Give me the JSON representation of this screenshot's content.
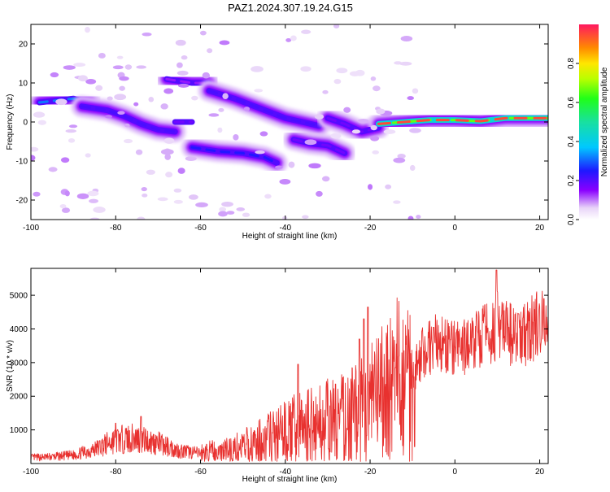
{
  "chart_data": [
    {
      "type": "heatmap",
      "title": "PAZ1.2024.307.19.24.G15",
      "xlabel": "Height of straight line (km)",
      "ylabel": "Frequency (Hz)",
      "xlim": [
        -100,
        22
      ],
      "ylim": [
        -25,
        25
      ],
      "x_ticks": [
        "-100",
        "-80",
        "-60",
        "-40",
        "-20",
        "0",
        "20"
      ],
      "y_ticks": [
        "-20",
        "-10",
        "0",
        "10",
        "20"
      ],
      "colorbar": {
        "label": "Normalized spectral amplitude",
        "range": [
          0,
          1
        ],
        "ticks": [
          "0.0",
          "0.2",
          "0.4",
          "0.6",
          "0.8"
        ]
      },
      "tracks": [
        {
          "x": [
            -98,
            -94,
            -90,
            -86
          ],
          "y": [
            5,
            5.5,
            6,
            5
          ],
          "amplitude": 0.45
        },
        {
          "x": [
            -88,
            -82,
            -78,
            -74,
            -70,
            -66
          ],
          "y": [
            4,
            3,
            1.5,
            -0.5,
            -2,
            -2.5
          ],
          "amplitude": 0.3
        },
        {
          "x": [
            -66,
            -62
          ],
          "y": [
            0,
            0
          ],
          "amplitude": 0.25
        },
        {
          "x": [
            -62,
            -56,
            -50,
            -45,
            -42
          ],
          "y": [
            -6.5,
            -7.5,
            -8,
            -9,
            -10.5
          ],
          "amplitude": 0.35
        },
        {
          "x": [
            -68,
            -62,
            -58
          ],
          "y": [
            11,
            10,
            10
          ],
          "amplitude": 0.2
        },
        {
          "x": [
            -58,
            -52,
            -46,
            -40,
            -36,
            -32
          ],
          "y": [
            8,
            6,
            3.5,
            1,
            0,
            -1
          ],
          "amplitude": 0.3
        },
        {
          "x": [
            -38,
            -34,
            -30,
            -26
          ],
          "y": [
            -4.5,
            -5.5,
            -6,
            -8
          ],
          "amplitude": 0.25
        },
        {
          "x": [
            -30,
            -26,
            -22,
            -18
          ],
          "y": [
            1,
            -0.5,
            -2.5,
            -1.5
          ],
          "amplitude": 0.25
        },
        {
          "x": [
            -18,
            -12,
            -6,
            0,
            6,
            12,
            18,
            22
          ],
          "y": [
            -0.5,
            0,
            0.5,
            0.5,
            0.2,
            1,
            1,
            1
          ],
          "amplitude": 0.95
        }
      ]
    },
    {
      "type": "line",
      "xlabel": "Height of straight line (km)",
      "ylabel": "SNR (10 * v/v)",
      "xlim": [
        -100,
        22
      ],
      "ylim": [
        0,
        5800
      ],
      "x_ticks": [
        "-100",
        "-80",
        "-60",
        "-40",
        "-20",
        "0",
        "20"
      ],
      "y_ticks": [
        "1000",
        "2000",
        "3000",
        "4000",
        "5000"
      ],
      "series": [
        {
          "color": "#e8312f",
          "x": [
            -100,
            -95,
            -90,
            -85,
            -80,
            -75,
            -70,
            -65,
            -60,
            -55,
            -50,
            -45,
            -40,
            -35,
            -30,
            -25,
            -22,
            -20,
            -18,
            -15,
            -12,
            -10,
            -8,
            -5,
            0,
            3,
            5,
            8,
            10,
            12,
            15,
            18,
            20,
            22
          ],
          "y": [
            180,
            200,
            250,
            420,
            700,
            750,
            600,
            380,
            300,
            350,
            480,
            680,
            900,
            1100,
            1200,
            1350,
            1550,
            1700,
            1900,
            2300,
            2500,
            2700,
            3200,
            3600,
            3400,
            3500,
            3700,
            3900,
            4100,
            3900,
            3700,
            4000,
            4200,
            4300
          ],
          "spikes": [
            [
              -20.5,
              4650
            ],
            [
              -21.5,
              4300
            ],
            [
              -22.5,
              3700
            ],
            [
              -37,
              2950
            ],
            [
              -14,
              2850
            ],
            [
              -5,
              4050
            ],
            [
              9.8,
              5750
            ],
            [
              15,
              4450
            ],
            [
              21,
              4900
            ],
            [
              -9.5,
              500
            ],
            [
              -74,
              1400
            ],
            [
              -80,
              1200
            ]
          ]
        }
      ]
    }
  ]
}
